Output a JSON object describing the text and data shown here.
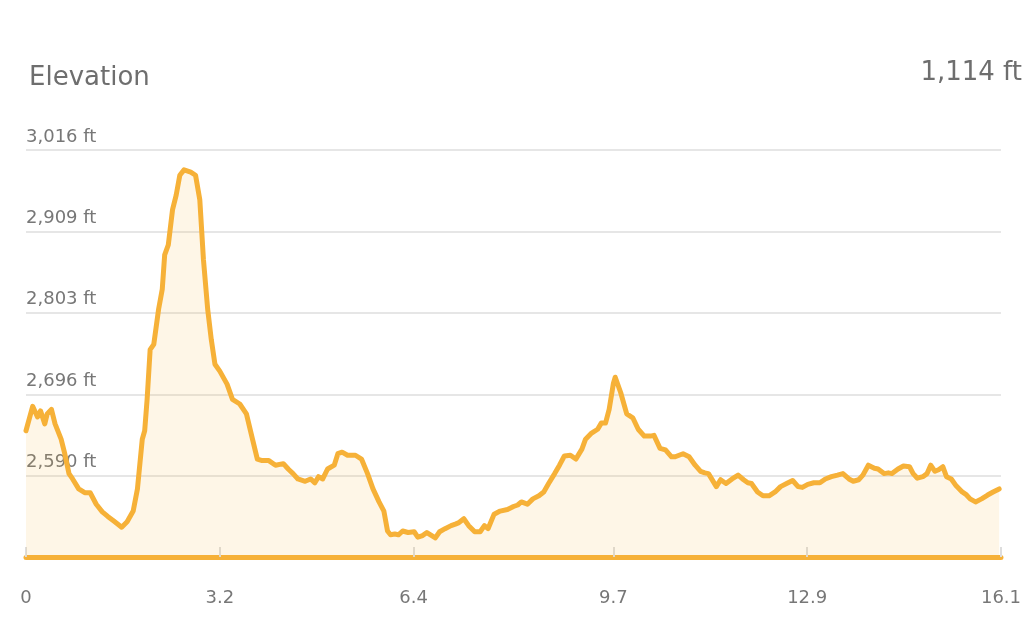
{
  "chart_data": {
    "type": "area",
    "title": "Elevation",
    "annotations": [
      "1,114 ft"
    ],
    "series": [
      {
        "color": "#f6b138",
        "x": [
          0,
          0.11,
          0.19,
          0.24,
          0.31,
          0.35,
          0.42,
          0.48,
          0.58,
          0.64,
          0.71,
          0.77,
          0.87,
          0.97,
          1.06,
          1.16,
          1.26,
          1.35,
          1.45,
          1.58,
          1.67,
          1.77,
          1.84,
          1.92,
          1.96,
          2.0,
          2.05,
          2.11,
          2.19,
          2.25,
          2.29,
          2.35,
          2.42,
          2.48,
          2.54,
          2.61,
          2.72,
          2.8,
          2.87,
          2.93,
          3.0,
          3.06,
          3.12,
          3.2,
          3.32,
          3.41,
          3.53,
          3.64,
          3.74,
          3.82,
          3.9,
          4.01,
          4.12,
          4.25,
          4.33,
          4.41,
          4.49,
          4.61,
          4.7,
          4.77,
          4.83,
          4.9,
          4.98,
          5.09,
          5.15,
          5.22,
          5.31,
          5.44,
          5.54,
          5.64,
          5.73,
          5.83,
          5.91,
          5.97,
          6.02,
          6.09,
          6.15,
          6.22,
          6.31,
          6.41,
          6.47,
          6.55,
          6.62,
          6.7,
          6.76,
          6.83,
          6.92,
          7.02,
          7.09,
          7.15,
          7.23,
          7.31,
          7.41,
          7.5,
          7.57,
          7.63,
          7.73,
          7.83,
          7.95,
          8.05,
          8.12,
          8.18,
          8.28,
          8.37,
          8.47,
          8.55,
          8.63,
          8.73,
          8.81,
          8.89,
          8.99,
          9.08,
          9.18,
          9.24,
          9.34,
          9.44,
          9.5,
          9.57,
          9.63,
          9.7,
          9.73,
          9.82,
          9.92,
          10.02,
          10.11,
          10.21,
          10.31,
          10.37,
          10.47,
          10.56,
          10.66,
          10.72,
          10.85,
          10.95,
          11.05,
          11.14,
          11.21,
          11.27,
          11.4,
          11.47,
          11.56,
          11.66,
          11.76,
          11.85,
          11.92,
          11.98,
          12.08,
          12.17,
          12.27,
          12.37,
          12.46,
          12.56,
          12.66,
          12.75,
          12.82,
          12.91,
          13.01,
          13.11,
          13.2,
          13.3,
          13.4,
          13.49,
          13.59,
          13.66,
          13.75,
          13.82,
          13.91,
          14.01,
          14.07,
          14.17,
          14.24,
          14.3,
          14.4,
          14.49,
          14.59,
          14.65,
          14.72,
          14.81,
          14.88,
          14.94,
          15.01,
          15.07,
          15.14,
          15.2,
          15.28,
          15.36,
          15.46,
          15.52,
          15.59,
          15.68,
          15.78,
          15.88,
          15.97,
          16.07
        ],
        "values": [
          2649,
          2681,
          2667,
          2675,
          2658,
          2671,
          2677,
          2658,
          2638,
          2619,
          2593,
          2586,
          2573,
          2568,
          2568,
          2553,
          2543,
          2537,
          2531,
          2523,
          2530,
          2544,
          2573,
          2638,
          2649,
          2690,
          2755,
          2762,
          2808,
          2834,
          2879,
          2892,
          2938,
          2957,
          2983,
          2990,
          2987,
          2983,
          2951,
          2873,
          2808,
          2768,
          2736,
          2727,
          2710,
          2690,
          2684,
          2671,
          2638,
          2612,
          2610,
          2610,
          2604,
          2606,
          2599,
          2593,
          2586,
          2583,
          2586,
          2581,
          2589,
          2586,
          2599,
          2604,
          2619,
          2621,
          2617,
          2617,
          2612,
          2593,
          2573,
          2556,
          2544,
          2518,
          2513,
          2514,
          2513,
          2518,
          2516,
          2517,
          2510,
          2512,
          2516,
          2512,
          2509,
          2517,
          2521,
          2525,
          2527,
          2529,
          2534,
          2525,
          2517,
          2517,
          2525,
          2521,
          2540,
          2544,
          2546,
          2550,
          2552,
          2556,
          2553,
          2560,
          2564,
          2569,
          2580,
          2593,
          2604,
          2616,
          2617,
          2612,
          2625,
          2638,
          2646,
          2651,
          2659,
          2659,
          2677,
          2711,
          2719,
          2699,
          2671,
          2666,
          2651,
          2642,
          2642,
          2643,
          2626,
          2624,
          2615,
          2615,
          2619,
          2615,
          2604,
          2596,
          2594,
          2593,
          2576,
          2585,
          2580,
          2586,
          2591,
          2585,
          2581,
          2580,
          2569,
          2564,
          2564,
          2569,
          2576,
          2580,
          2584,
          2576,
          2575,
          2579,
          2581,
          2581,
          2586,
          2589,
          2591,
          2593,
          2586,
          2583,
          2585,
          2591,
          2604,
          2600,
          2599,
          2593,
          2594,
          2593,
          2599,
          2603,
          2602,
          2593,
          2587,
          2589,
          2593,
          2604,
          2596,
          2598,
          2602,
          2589,
          2586,
          2577,
          2569,
          2566,
          2560,
          2556,
          2560,
          2565,
          2569,
          2573
        ]
      }
    ],
    "xlim": [
      0,
      16.1
    ],
    "xticks": [
      0,
      3.2,
      6.4,
      9.7,
      12.9,
      16.1
    ],
    "ylim": [
      2484,
      3016
    ],
    "yticks": [
      {
        "value": 2590,
        "label": "2,590 ft"
      },
      {
        "value": 2696,
        "label": "2,696 ft"
      },
      {
        "value": 2803,
        "label": "2,803 ft"
      },
      {
        "value": 2909,
        "label": "2,909 ft"
      },
      {
        "value": 3016,
        "label": "3,016 ft"
      }
    ],
    "grid": "y",
    "marker": "none",
    "line_style": "solid"
  }
}
